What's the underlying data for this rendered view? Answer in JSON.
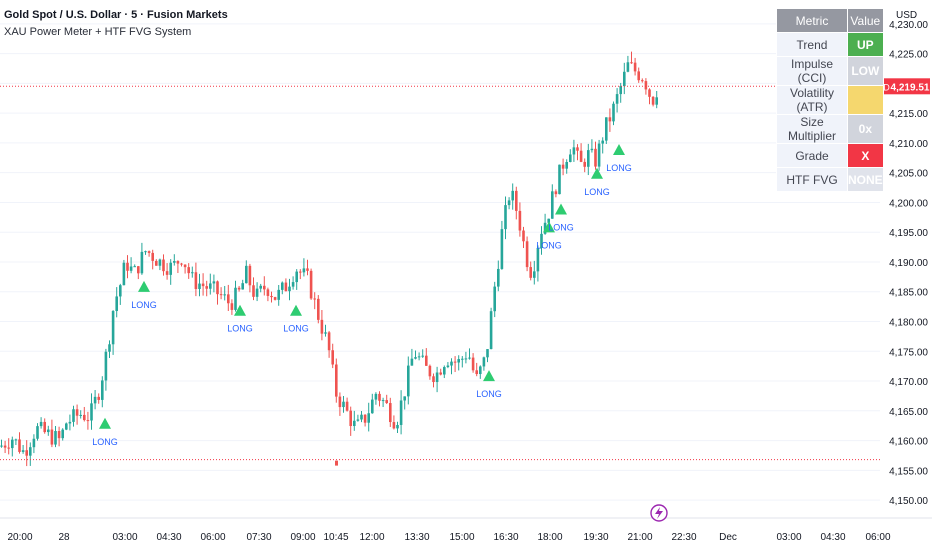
{
  "header": {
    "title": "Gold Spot / U.S. Dollar · 5 · Fusion Markets",
    "subtitle": "XAU Power Meter + HTF FVG System",
    "currency": "USD"
  },
  "table": {
    "headers": [
      "Metric",
      "Value"
    ],
    "rows": [
      {
        "metric": "Trend",
        "value": "UP",
        "color": "#4caf50"
      },
      {
        "metric": "Impulse (CCI)",
        "value": "LOW",
        "color": "#d1d4dc"
      },
      {
        "metric": "Volatility (ATR)",
        "value": "",
        "color": "#f5d76e"
      },
      {
        "metric": "Size Multiplier",
        "value": "0x",
        "color": "#d1d4dc"
      },
      {
        "metric": "Grade",
        "value": "X",
        "color": "#f23645"
      },
      {
        "metric": "HTF FVG",
        "value": "NONE",
        "color": "#e0e3eb"
      }
    ]
  },
  "chart_data": {
    "type": "candlestick",
    "symbol": "XAUUSD",
    "last_price": 4219.51,
    "last_price_label": "4,219.51",
    "ylim": [
      4148,
      4233
    ],
    "y_ticks": [
      4150,
      4155,
      4160,
      4165,
      4170,
      4175,
      4180,
      4185,
      4190,
      4195,
      4200,
      4205,
      4210,
      4215,
      4220,
      4225,
      4230
    ],
    "y_tick_labels": [
      "4,150.00",
      "4,155.00",
      "4,160.00",
      "4,165.00",
      "4,170.00",
      "4,175.00",
      "4,180.00",
      "4,185.00",
      "4,190.00",
      "4,195.00",
      "4,200.00",
      "4,205.00",
      "4,210.00",
      "4,215.00",
      "4,220.00",
      "4,225.00",
      "4,230.00"
    ],
    "x_labels": [
      "20:00",
      "28",
      "03:00",
      "04:30",
      "06:00",
      "07:30",
      "09:00",
      "10:45",
      "12:00",
      "13:30",
      "15:00",
      "16:30",
      "18:00",
      "19:30",
      "21:00",
      "22:30",
      "Dec",
      "03:00",
      "04:30",
      "06:00"
    ],
    "price_path": [
      [
        0,
        4159.0
      ],
      [
        12,
        4160.5
      ],
      [
        24,
        4158.0
      ],
      [
        36,
        4162.0
      ],
      [
        48,
        4161.0
      ],
      [
        60,
        4160.0
      ],
      [
        66,
        4163.0
      ],
      [
        80,
        4164.5
      ],
      [
        90,
        4164.0
      ],
      [
        100,
        4169.0
      ],
      [
        108,
        4176.0
      ],
      [
        114,
        4183.0
      ],
      [
        120,
        4186.0
      ],
      [
        126,
        4190.0
      ],
      [
        134,
        4188.0
      ],
      [
        146,
        4192.0
      ],
      [
        160,
        4190.0
      ],
      [
        172,
        4189.0
      ],
      [
        182,
        4191.0
      ],
      [
        192,
        4187.0
      ],
      [
        204,
        4186.0
      ],
      [
        216,
        4185.0
      ],
      [
        230,
        4183.0
      ],
      [
        240,
        4185.0
      ],
      [
        246,
        4188.0
      ],
      [
        256,
        4184.0
      ],
      [
        266,
        4186.0
      ],
      [
        276,
        4184.0
      ],
      [
        286,
        4186.0
      ],
      [
        296,
        4189.0
      ],
      [
        308,
        4187.0
      ],
      [
        320,
        4180.0
      ],
      [
        328,
        4176.0
      ],
      [
        336,
        4168.0
      ],
      [
        346,
        4165.0
      ],
      [
        356,
        4162.0
      ],
      [
        366,
        4164.0
      ],
      [
        376,
        4168.0
      ],
      [
        386,
        4166.0
      ],
      [
        396,
        4163.0
      ],
      [
        404,
        4168.0
      ],
      [
        414,
        4175.0
      ],
      [
        426,
        4172.0
      ],
      [
        436,
        4171.0
      ],
      [
        446,
        4174.0
      ],
      [
        458,
        4173.0
      ],
      [
        468,
        4175.0
      ],
      [
        476,
        4170.0
      ],
      [
        486,
        4174.0
      ],
      [
        494,
        4185.0
      ],
      [
        502,
        4195.0
      ],
      [
        510,
        4202.0
      ],
      [
        518,
        4198.0
      ],
      [
        526,
        4191.0
      ],
      [
        532,
        4188.0
      ],
      [
        540,
        4195.0
      ],
      [
        548,
        4198.0
      ],
      [
        556,
        4203.0
      ],
      [
        564,
        4207.0
      ],
      [
        572,
        4210.0
      ],
      [
        580,
        4206.0
      ],
      [
        588,
        4208.0
      ],
      [
        596,
        4207.0
      ],
      [
        604,
        4212.0
      ],
      [
        612,
        4215.0
      ],
      [
        620,
        4219.0
      ],
      [
        628,
        4223.0
      ],
      [
        636,
        4222.0
      ],
      [
        644,
        4221.0
      ],
      [
        652,
        4217.0
      ],
      [
        658,
        4219.5
      ]
    ],
    "signals": [
      {
        "x": 105,
        "price": 4165.0,
        "label": "LONG"
      },
      {
        "x": 144,
        "price": 4188.0,
        "label": "LONG"
      },
      {
        "x": 240,
        "price": 4184.0,
        "label": "LONG"
      },
      {
        "x": 296,
        "price": 4184.0,
        "label": "LONG"
      },
      {
        "x": 489,
        "price": 4173.0,
        "label": "LONG"
      },
      {
        "x": 549,
        "price": 4198.0,
        "label": "LONG"
      },
      {
        "x": 561,
        "price": 4201.0,
        "label": "LONG"
      },
      {
        "x": 597,
        "price": 4207.0,
        "label": "LONG"
      },
      {
        "x": 619,
        "price": 4211.0,
        "label": "LONG"
      }
    ],
    "horizontal_levels": [
      {
        "price": 4219.51,
        "color": "#f23645"
      },
      {
        "price": 4156.8,
        "color": "#f23645"
      }
    ],
    "colors": {
      "up": "#26a69a",
      "down": "#ef5350",
      "signal": "#2ecc71",
      "signal_label": "#2962ff",
      "grid": "#f0f3fa"
    }
  }
}
